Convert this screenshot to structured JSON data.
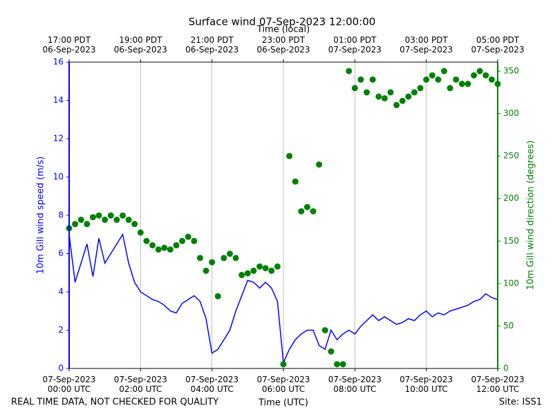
{
  "chart_data": {
    "type": "line-scatter",
    "title": "Surface wind 07-Sep-2023 12:00:00",
    "x2label": "Time (local)",
    "xlabel": "Time (UTC)",
    "ylabel": "10m Gill wind speed (m/s)",
    "y2label": "10m Gill wind direction (degrees)",
    "footer_left": "REAL TIME DATA, NOT CHECKED FOR QUALITY",
    "footer_right": "Site: ISS1",
    "xlim": [
      "2023-09-07T00:00",
      "2023-09-07T12:00"
    ],
    "xticks": [
      {
        "value": "2023-09-07T00:00",
        "label": "07-Sep-2023\n00:00 UTC"
      },
      {
        "value": "2023-09-07T02:00",
        "label": "07-Sep-2023\n02:00 UTC"
      },
      {
        "value": "2023-09-07T04:00",
        "label": "07-Sep-2023\n04:00 UTC"
      },
      {
        "value": "2023-09-07T06:00",
        "label": "07-Sep-2023\n06:00 UTC"
      },
      {
        "value": "2023-09-07T08:00",
        "label": "07-Sep-2023\n08:00 UTC"
      },
      {
        "value": "2023-09-07T10:00",
        "label": "07-Sep-2023\n10:00 UTC"
      },
      {
        "value": "2023-09-07T12:00",
        "label": "07-Sep-2023\n12:00 UTC"
      }
    ],
    "x2ticks": [
      {
        "value": "2023-09-07T00:00",
        "label": "17:00 PDT\n06-Sep-2023"
      },
      {
        "value": "2023-09-07T02:00",
        "label": "19:00 PDT\n06-Sep-2023"
      },
      {
        "value": "2023-09-07T04:00",
        "label": "21:00 PDT\n06-Sep-2023"
      },
      {
        "value": "2023-09-07T06:00",
        "label": "23:00 PDT\n06-Sep-2023"
      },
      {
        "value": "2023-09-07T08:00",
        "label": "01:00 PDT\n07-Sep-2023"
      },
      {
        "value": "2023-09-07T10:00",
        "label": "03:00 PDT\n07-Sep-2023"
      },
      {
        "value": "2023-09-07T12:00",
        "label": "05:00 PDT\n07-Sep-2023"
      }
    ],
    "ylim": [
      0,
      16
    ],
    "yticks": [
      0,
      2,
      4,
      6,
      8,
      10,
      12,
      14,
      16
    ],
    "y2lim": [
      0,
      360.6
    ],
    "y2ticks": [
      0,
      50,
      100,
      150,
      200,
      250,
      300,
      350
    ],
    "grid": "x",
    "x": [
      "2023-09-07T00:00",
      "2023-09-07T00:10",
      "2023-09-07T00:20",
      "2023-09-07T00:30",
      "2023-09-07T00:40",
      "2023-09-07T00:50",
      "2023-09-07T01:00",
      "2023-09-07T01:10",
      "2023-09-07T01:20",
      "2023-09-07T01:30",
      "2023-09-07T01:40",
      "2023-09-07T01:50",
      "2023-09-07T02:00",
      "2023-09-07T02:10",
      "2023-09-07T02:20",
      "2023-09-07T02:30",
      "2023-09-07T02:40",
      "2023-09-07T02:50",
      "2023-09-07T03:00",
      "2023-09-07T03:10",
      "2023-09-07T03:20",
      "2023-09-07T03:30",
      "2023-09-07T03:40",
      "2023-09-07T03:50",
      "2023-09-07T04:00",
      "2023-09-07T04:10",
      "2023-09-07T04:20",
      "2023-09-07T04:30",
      "2023-09-07T04:40",
      "2023-09-07T04:50",
      "2023-09-07T05:00",
      "2023-09-07T05:10",
      "2023-09-07T05:20",
      "2023-09-07T05:30",
      "2023-09-07T05:40",
      "2023-09-07T05:50",
      "2023-09-07T06:00",
      "2023-09-07T06:10",
      "2023-09-07T06:20",
      "2023-09-07T06:30",
      "2023-09-07T06:40",
      "2023-09-07T06:50",
      "2023-09-07T07:00",
      "2023-09-07T07:10",
      "2023-09-07T07:20",
      "2023-09-07T07:30",
      "2023-09-07T07:40",
      "2023-09-07T07:50",
      "2023-09-07T08:00",
      "2023-09-07T08:10",
      "2023-09-07T08:20",
      "2023-09-07T08:30",
      "2023-09-07T08:40",
      "2023-09-07T08:50",
      "2023-09-07T09:00",
      "2023-09-07T09:10",
      "2023-09-07T09:20",
      "2023-09-07T09:30",
      "2023-09-07T09:40",
      "2023-09-07T09:50",
      "2023-09-07T10:00",
      "2023-09-07T10:10",
      "2023-09-07T10:20",
      "2023-09-07T10:30",
      "2023-09-07T10:40",
      "2023-09-07T10:50",
      "2023-09-07T11:00",
      "2023-09-07T11:10",
      "2023-09-07T11:20",
      "2023-09-07T11:30",
      "2023-09-07T11:40",
      "2023-09-07T11:50",
      "2023-09-07T12:00"
    ],
    "series": [
      {
        "type": "line",
        "color": "#0000ff",
        "values": [
          7.0,
          4.5,
          5.5,
          6.5,
          4.8,
          6.8,
          5.5,
          6.0,
          6.5,
          7.0,
          5.5,
          4.5,
          4.0,
          3.8,
          3.6,
          3.5,
          3.3,
          3.0,
          2.9,
          3.4,
          3.6,
          3.8,
          3.5,
          2.6,
          0.8,
          1.0,
          1.5,
          2.0,
          3.0,
          3.8,
          4.6,
          4.5,
          4.2,
          4.5,
          4.2,
          3.5,
          0.3,
          1.0,
          1.5,
          1.8,
          2.0,
          2.0,
          1.2,
          1.0,
          2.0,
          1.5,
          1.8,
          2.0,
          1.8,
          2.2,
          2.5,
          2.8,
          2.5,
          2.7,
          2.5,
          2.3,
          2.4,
          2.6,
          2.5,
          2.8,
          3.0,
          2.7,
          2.9,
          2.8,
          3.0,
          3.1,
          3.2,
          3.3,
          3.5,
          3.6,
          3.9,
          3.7,
          3.6
        ]
      },
      {
        "type": "scatter",
        "axis": "y2",
        "color": "#008000",
        "values": [
          165,
          170,
          175,
          170,
          178,
          180,
          175,
          180,
          175,
          180,
          175,
          170,
          160,
          150,
          145,
          140,
          142,
          140,
          145,
          150,
          155,
          150,
          130,
          115,
          125,
          85,
          130,
          135,
          130,
          110,
          112,
          115,
          120,
          118,
          115,
          120,
          5,
          250,
          220,
          185,
          190,
          185,
          240,
          45,
          20,
          5,
          5,
          350,
          330,
          340,
          325,
          340,
          320,
          318,
          325,
          310,
          315,
          320,
          325,
          330,
          340,
          345,
          340,
          350,
          330,
          340,
          335,
          335,
          345,
          350,
          345,
          340,
          335
        ]
      }
    ]
  }
}
